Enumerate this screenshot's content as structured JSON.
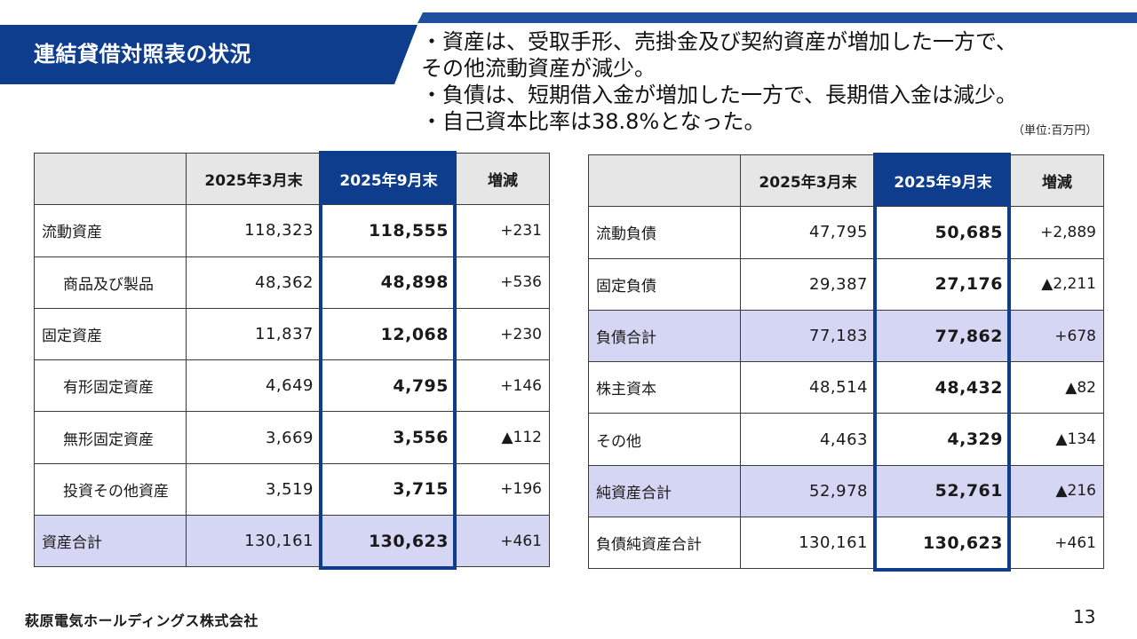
{
  "title": "連結貸借対照表の状況",
  "bullets": [
    "・資産は、受取手形、売掛金及び契約資産が増加した一方で、",
    "その他流動資産が減少。",
    "・負債は、短期借入金が増加した一方で、長期借入金は減少。",
    "・自己資本比率は38.8%となった。"
  ],
  "unit_note": "（単位:百万円）",
  "columns": {
    "label": "",
    "prev": "2025年3月末",
    "curr": "2025年9月末",
    "diff": "増減"
  },
  "assets": {
    "rows": [
      {
        "label": "流動資産",
        "prev": "118,323",
        "curr": "118,555",
        "diff": "+231"
      },
      {
        "label": "商品及び製品",
        "prev": "48,362",
        "curr": "48,898",
        "diff": "+536"
      },
      {
        "label": "固定資産",
        "prev": "11,837",
        "curr": "12,068",
        "diff": "+230"
      },
      {
        "label": "有形固定資産",
        "prev": "4,649",
        "curr": "4,795",
        "diff": "+146"
      },
      {
        "label": "無形固定資産",
        "prev": "3,669",
        "curr": "3,556",
        "diff": "▲112"
      },
      {
        "label": "投資その他資産",
        "prev": "3,519",
        "curr": "3,715",
        "diff": "+196"
      },
      {
        "label": "資産合計",
        "prev": "130,161",
        "curr": "130,623",
        "diff": "+461"
      }
    ]
  },
  "liabilities": {
    "rows": [
      {
        "label": "流動負債",
        "prev": "47,795",
        "curr": "50,685",
        "diff": "+2,889"
      },
      {
        "label": "固定負債",
        "prev": "29,387",
        "curr": "27,176",
        "diff": "▲2,211"
      },
      {
        "label": "負債合計",
        "prev": "77,183",
        "curr": "77,862",
        "diff": "+678"
      },
      {
        "label": "株主資本",
        "prev": "48,514",
        "curr": "48,432",
        "diff": "▲82"
      },
      {
        "label": "その他",
        "prev": "4,463",
        "curr": "4,329",
        "diff": "▲134"
      },
      {
        "label": "純資産合計",
        "prev": "52,978",
        "curr": "52,761",
        "diff": "▲216"
      },
      {
        "label": "負債純資産合計",
        "prev": "130,161",
        "curr": "130,623",
        "diff": "+461"
      }
    ]
  },
  "footer": {
    "company": "萩原電気ホールディングス株式会社",
    "page_number": "13"
  },
  "colors": {
    "accent": "#0e3d8e",
    "total_row": "#d5d5f4",
    "header_bg": "#e6e6e6"
  }
}
